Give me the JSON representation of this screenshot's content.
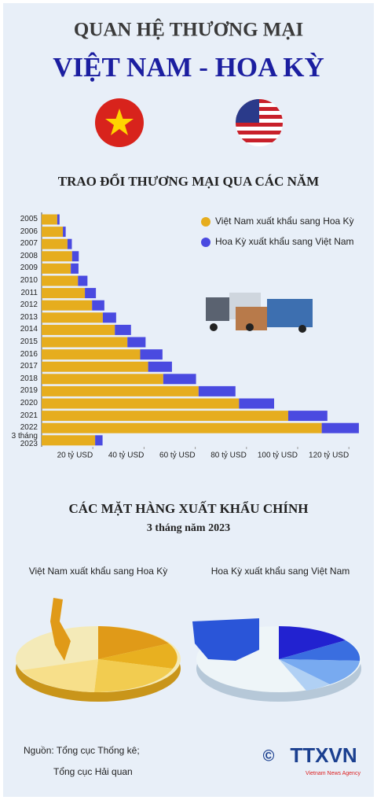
{
  "header": {
    "title": "QUAN HỆ THƯƠNG MẠI",
    "subtitle": "VIỆT NAM - HOA KỲ"
  },
  "chart_data": {
    "type": "bar",
    "orientation": "horizontal",
    "stacked": true,
    "title": "TRAO ĐỔI THƯƠNG MẠI QUA CÁC NĂM",
    "categories": [
      "2005",
      "2006",
      "2007",
      "2008",
      "2009",
      "2010",
      "2011",
      "2012",
      "2013",
      "2014",
      "2015",
      "2016",
      "2017",
      "2018",
      "2019",
      "2020",
      "2021",
      "2022",
      "3 tháng 2023"
    ],
    "series": [
      {
        "name": "Việt Nam xuất khẩu sang Hoa Kỳ",
        "color": "#e6ad1e",
        "values": [
          6.1,
          8.3,
          10.1,
          11.9,
          11.4,
          14.2,
          16.9,
          19.7,
          23.9,
          28.6,
          33.5,
          38.5,
          41.6,
          47.5,
          61.3,
          77.1,
          96.3,
          109.4,
          20.9
        ]
      },
      {
        "name": "Hoa Kỳ xuất khẩu sang Việt Nam",
        "color": "#4a4ae0",
        "values": [
          0.9,
          1.1,
          1.7,
          2.6,
          3.0,
          3.7,
          4.3,
          4.8,
          5.2,
          6.3,
          7.1,
          8.7,
          9.3,
          12.8,
          14.4,
          13.7,
          15.3,
          14.5,
          2.9
        ]
      }
    ],
    "xlim": [
      0,
      125
    ],
    "xticks": [
      {
        "value": 20,
        "label": "20 tỷ USD"
      },
      {
        "value": 40,
        "label": "40 tỷ USD"
      },
      {
        "value": 60,
        "label": "60 tỷ USD"
      },
      {
        "value": 80,
        "label": "80 tỷ USD"
      },
      {
        "value": 100,
        "label": "100 tỷ USD"
      },
      {
        "value": 120,
        "label": "120 tỷ USD"
      }
    ],
    "legend": "top-right"
  },
  "exports": {
    "title": "CÁC MẶT HÀNG XUẤT KHẨU CHÍNH",
    "subtitle": "3 tháng năm 2023",
    "left_label": "Việt Nam xuất khẩu sang Hoa Kỳ",
    "right_label": "Hoa Kỳ xuất khẩu sang Việt Nam"
  },
  "footer": {
    "source_1": "Nguồn: Tổng cục Thống kê;",
    "source_2": "Tổng cục Hải quan",
    "copyright": "©",
    "logo": "TTXVN",
    "logo_sub": "Vietnam News Agency"
  }
}
